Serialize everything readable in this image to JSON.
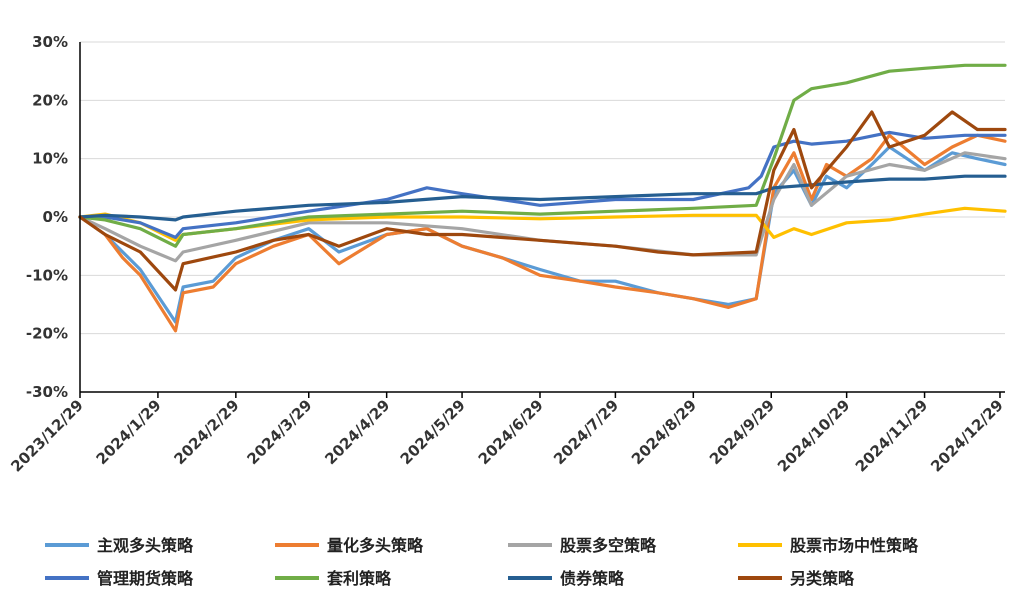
{
  "chart_data": {
    "type": "line",
    "title": "",
    "xlabel": "",
    "ylabel": "",
    "ylim": [
      -30,
      30
    ],
    "y_unit": "%",
    "y_ticks": [
      "30%",
      "20%",
      "10%",
      "0%",
      "-10%",
      "-20%",
      "-30%"
    ],
    "y_tick_values": [
      30,
      20,
      10,
      0,
      -10,
      -20,
      -30
    ],
    "x_ticks": [
      "2023/12/29",
      "2024/1/29",
      "2024/2/29",
      "2024/3/29",
      "2024/4/29",
      "2024/5/29",
      "2024/6/29",
      "2024/7/29",
      "2024/8/29",
      "2024/9/29",
      "2024/10/29",
      "2024/11/29",
      "2024/12/29"
    ],
    "xlim": [
      "2023/12/29",
      "2024/12/31"
    ],
    "grid": "horizontal",
    "legend_position": "bottom",
    "series": [
      {
        "name": "主观多头策略",
        "color": "#5B9BD5",
        "x": [
          "2023/12/29",
          "2024/1/8",
          "2024/1/15",
          "2024/1/22",
          "2024/2/5",
          "2024/2/8",
          "2024/2/20",
          "2024/2/29",
          "2024/3/15",
          "2024/3/29",
          "2024/4/10",
          "2024/4/29",
          "2024/5/15",
          "2024/5/29",
          "2024/6/14",
          "2024/6/29",
          "2024/7/15",
          "2024/7/29",
          "2024/8/15",
          "2024/8/29",
          "2024/9/12",
          "2024/9/23",
          "2024/9/30",
          "2024/10/8",
          "2024/10/15",
          "2024/10/21",
          "2024/10/29",
          "2024/11/8",
          "2024/11/15",
          "2024/11/29",
          "2024/12/10",
          "2024/12/20",
          "2024/12/31"
        ],
        "y": [
          0,
          -3,
          -6,
          -9,
          -18,
          -12,
          -11,
          -7,
          -4,
          -2,
          -6,
          -3,
          -2,
          -5,
          -7,
          -9,
          -11,
          -11,
          -13,
          -14,
          -15,
          -14,
          4,
          8,
          2,
          7,
          5,
          9,
          12,
          8,
          11,
          10,
          9
        ]
      },
      {
        "name": "量化多头策略",
        "color": "#ED7D31",
        "x": [
          "2023/12/29",
          "2024/1/8",
          "2024/1/15",
          "2024/1/22",
          "2024/2/5",
          "2024/2/8",
          "2024/2/20",
          "2024/2/29",
          "2024/3/15",
          "2024/3/29",
          "2024/4/10",
          "2024/4/29",
          "2024/5/15",
          "2024/5/29",
          "2024/6/14",
          "2024/6/29",
          "2024/7/15",
          "2024/7/29",
          "2024/8/15",
          "2024/8/29",
          "2024/9/12",
          "2024/9/23",
          "2024/9/30",
          "2024/10/8",
          "2024/10/15",
          "2024/10/21",
          "2024/10/29",
          "2024/11/8",
          "2024/11/15",
          "2024/11/29",
          "2024/12/10",
          "2024/12/20",
          "2024/12/31"
        ],
        "y": [
          0,
          -3,
          -7,
          -10,
          -19.5,
          -13,
          -12,
          -8,
          -5,
          -3,
          -8,
          -3,
          -2,
          -5,
          -7,
          -10,
          -11,
          -12,
          -13,
          -14,
          -15.5,
          -14,
          5,
          11,
          3,
          9,
          7,
          10,
          14,
          9,
          12,
          14,
          13
        ]
      },
      {
        "name": "股票多空策略",
        "color": "#A5A5A5",
        "x": [
          "2023/12/29",
          "2024/1/8",
          "2024/1/22",
          "2024/2/5",
          "2024/2/8",
          "2024/2/29",
          "2024/3/29",
          "2024/4/29",
          "2024/5/29",
          "2024/6/29",
          "2024/7/29",
          "2024/8/29",
          "2024/9/23",
          "2024/9/30",
          "2024/10/8",
          "2024/10/15",
          "2024/10/29",
          "2024/11/15",
          "2024/11/29",
          "2024/12/15",
          "2024/12/31"
        ],
        "y": [
          0,
          -2,
          -5,
          -7.5,
          -6,
          -4,
          -1,
          -1,
          -2,
          -4,
          -5,
          -6.5,
          -6.5,
          3,
          9,
          2,
          7,
          9,
          8,
          11,
          10
        ]
      },
      {
        "name": "股票市场中性策略",
        "color": "#FFC000",
        "x": [
          "2023/12/29",
          "2024/1/8",
          "2024/1/22",
          "2024/2/5",
          "2024/2/8",
          "2024/2/29",
          "2024/3/29",
          "2024/4/29",
          "2024/5/29",
          "2024/6/29",
          "2024/7/29",
          "2024/8/29",
          "2024/9/23",
          "2024/9/30",
          "2024/10/8",
          "2024/10/15",
          "2024/10/29",
          "2024/11/15",
          "2024/11/29",
          "2024/12/15",
          "2024/12/31"
        ],
        "y": [
          0,
          0.5,
          -1,
          -4,
          -3,
          -2,
          -0.5,
          0,
          0,
          -0.3,
          0,
          0.3,
          0.3,
          -3.5,
          -2,
          -3,
          -1,
          -0.5,
          0.5,
          1.5,
          1
        ]
      },
      {
        "name": "管理期货策略",
        "color": "#4472C4",
        "x": [
          "2023/12/29",
          "2024/1/8",
          "2024/1/22",
          "2024/2/5",
          "2024/2/8",
          "2024/2/29",
          "2024/3/29",
          "2024/4/29",
          "2024/5/15",
          "2024/5/29",
          "2024/6/29",
          "2024/7/29",
          "2024/8/15",
          "2024/8/29",
          "2024/9/20",
          "2024/9/25",
          "2024/9/30",
          "2024/10/8",
          "2024/10/15",
          "2024/10/29",
          "2024/11/15",
          "2024/11/29",
          "2024/12/15",
          "2024/12/31"
        ],
        "y": [
          0,
          0,
          -1,
          -3.5,
          -2,
          -1,
          1,
          3,
          5,
          4,
          2,
          3,
          3,
          3,
          5,
          7,
          12,
          13,
          12.5,
          13,
          14.5,
          13.5,
          14,
          14
        ]
      },
      {
        "name": "套利策略",
        "color": "#70AD47",
        "x": [
          "2023/12/29",
          "2024/1/8",
          "2024/1/22",
          "2024/2/5",
          "2024/2/8",
          "2024/2/29",
          "2024/3/29",
          "2024/4/29",
          "2024/5/29",
          "2024/6/29",
          "2024/7/29",
          "2024/8/29",
          "2024/9/23",
          "2024/9/30",
          "2024/10/8",
          "2024/10/15",
          "2024/10/29",
          "2024/11/15",
          "2024/11/29",
          "2024/12/15",
          "2024/12/31"
        ],
        "y": [
          0,
          -0.5,
          -2,
          -5,
          -3,
          -2,
          0,
          0.5,
          1,
          0.5,
          1,
          1.5,
          2,
          10,
          20,
          22,
          23,
          25,
          25.5,
          26,
          26
        ]
      },
      {
        "name": "债券策略",
        "color": "#255E91",
        "x": [
          "2023/12/29",
          "2024/1/8",
          "2024/1/22",
          "2024/2/5",
          "2024/2/8",
          "2024/2/29",
          "2024/3/29",
          "2024/4/29",
          "2024/5/29",
          "2024/6/29",
          "2024/7/29",
          "2024/8/29",
          "2024/9/23",
          "2024/9/30",
          "2024/10/15",
          "2024/10/29",
          "2024/11/15",
          "2024/11/29",
          "2024/12/15",
          "2024/12/31"
        ],
        "y": [
          0,
          0.3,
          0,
          -0.5,
          0,
          1,
          2,
          2.5,
          3.5,
          3,
          3.5,
          4,
          4,
          5,
          5.5,
          6,
          6.5,
          6.5,
          7,
          7
        ]
      },
      {
        "name": "另类策略",
        "color": "#9E480E",
        "x": [
          "2023/12/29",
          "2024/1/8",
          "2024/1/22",
          "2024/2/5",
          "2024/2/8",
          "2024/2/29",
          "2024/3/15",
          "2024/3/29",
          "2024/4/10",
          "2024/4/29",
          "2024/5/15",
          "2024/5/29",
          "2024/6/29",
          "2024/7/29",
          "2024/8/15",
          "2024/8/29",
          "2024/9/23",
          "2024/9/30",
          "2024/10/8",
          "2024/10/15",
          "2024/10/29",
          "2024/11/8",
          "2024/11/15",
          "2024/11/29",
          "2024/12/10",
          "2024/12/20",
          "2024/12/31"
        ],
        "y": [
          0,
          -3,
          -6,
          -12.5,
          -8,
          -6,
          -4,
          -3,
          -5,
          -2,
          -3,
          -3,
          -4,
          -5,
          -6,
          -6.5,
          -6,
          8,
          15,
          5,
          12,
          18,
          12,
          14,
          18,
          15,
          15
        ]
      }
    ]
  }
}
